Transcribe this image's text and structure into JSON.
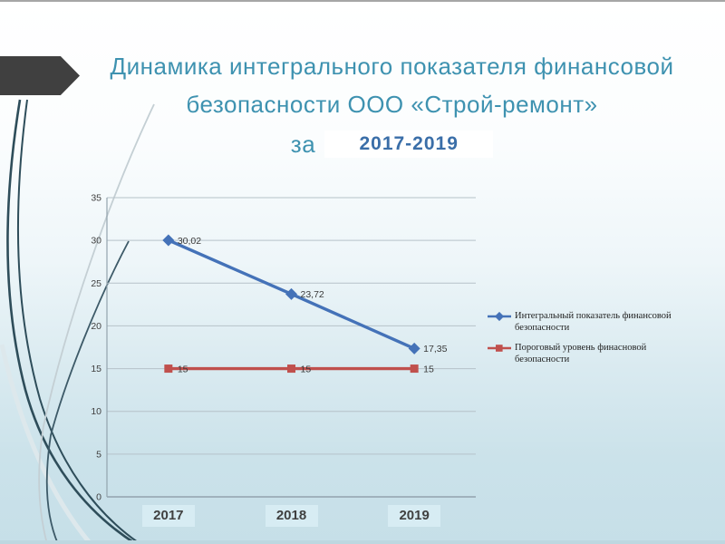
{
  "slide": {
    "title": {
      "line1": "Динамика интегрального показателя финансовой",
      "line2": "безопасности ООО «Строй-ремонт»",
      "prefix": "за",
      "period": "2017-2019"
    },
    "colors": {
      "title_text": "#3e92b0",
      "period_text": "#3a6ea8",
      "series_blue": "#4472b8",
      "series_red": "#c0504d",
      "year_box_bg": "#d7ecf3"
    }
  },
  "chart_data": {
    "type": "line",
    "categories": [
      "2017",
      "2018",
      "2019"
    ],
    "series": [
      {
        "name": "Интегральный показатель финансовой безопасности",
        "values": [
          30.02,
          23.72,
          17.35
        ],
        "labels": [
          "30,02",
          "23,72",
          "17,35"
        ],
        "color": "#4472b8",
        "marker": "diamond"
      },
      {
        "name": "Пороговый уровень финасновой безопасности",
        "values": [
          15,
          15,
          15
        ],
        "labels": [
          "15",
          "15",
          "15"
        ],
        "color": "#c0504d",
        "marker": "square"
      }
    ],
    "ylim": [
      0,
      35
    ],
    "yticks": [
      0,
      5,
      10,
      15,
      20,
      25,
      30,
      35
    ],
    "grid": true,
    "legend_position": "right",
    "xlabel": "",
    "ylabel": ""
  }
}
